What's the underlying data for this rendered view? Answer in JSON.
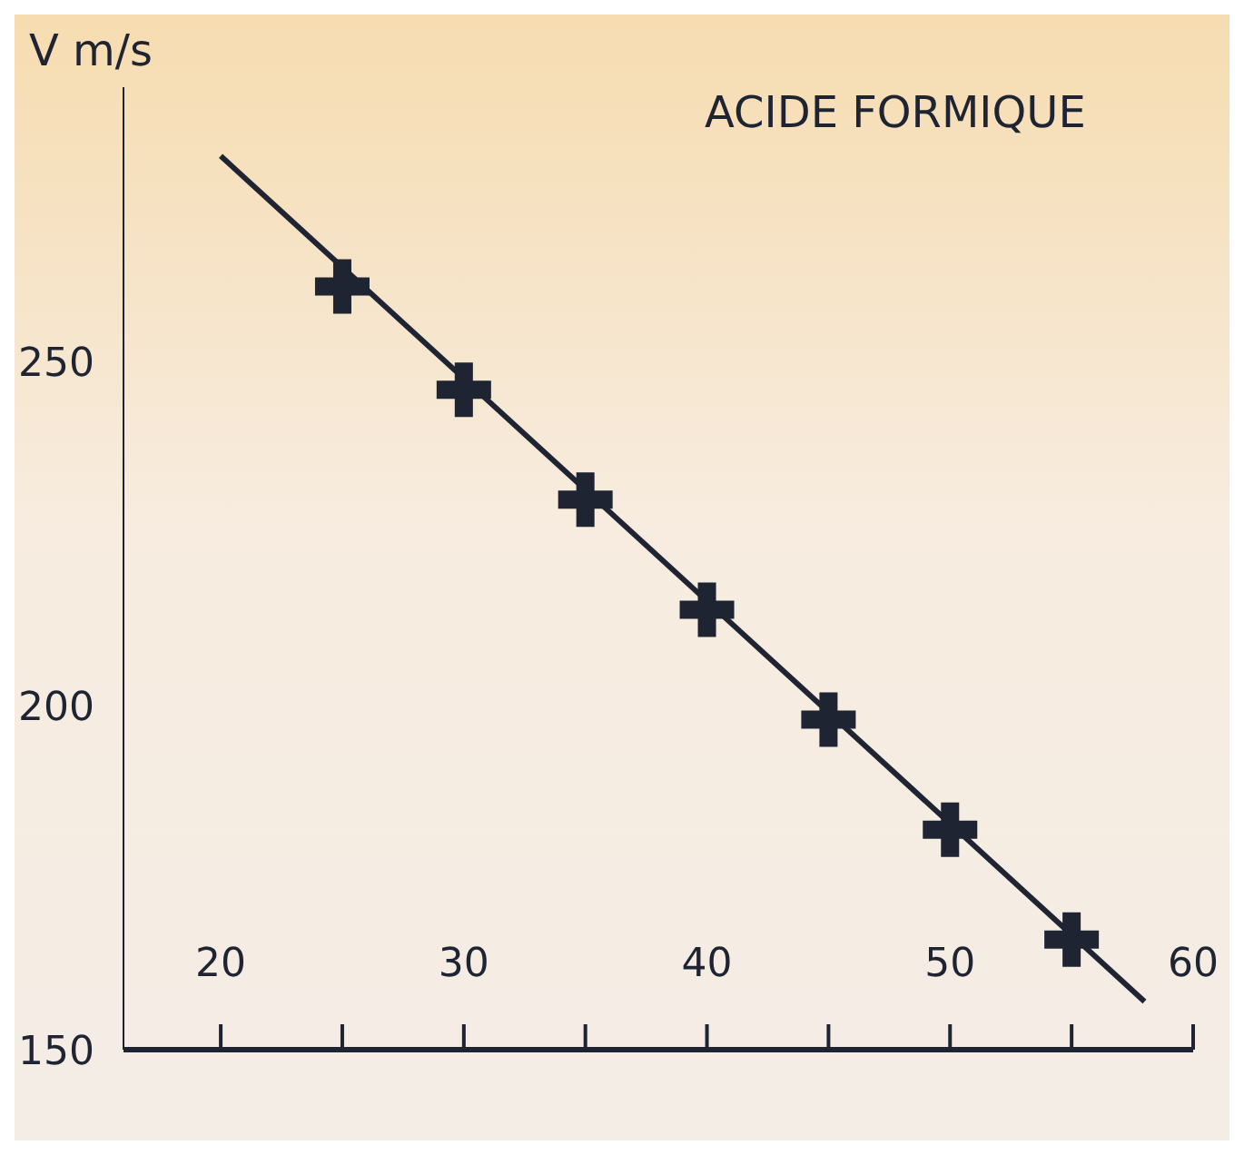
{
  "chart_data": {
    "type": "scatter",
    "title": "ACIDE FORMIQUE",
    "ylabel": "V m/s",
    "xlim": [
      16,
      60
    ],
    "ylim": [
      150,
      290
    ],
    "xticks": [
      20,
      {
        "value": 25,
        "label": null
      },
      30,
      {
        "value": 35,
        "label": null
      },
      40,
      {
        "value": 45,
        "label": null
      },
      50,
      {
        "value": 55,
        "label": null
      },
      60
    ],
    "yticks": [
      150,
      200,
      250
    ],
    "marker": "cross",
    "grid": false,
    "series": [
      {
        "color": "#1f2433",
        "x": [
          25,
          30,
          35,
          40,
          45,
          50,
          55
        ],
        "values": [
          261,
          246,
          230,
          214,
          198,
          182,
          166
        ]
      },
      {
        "type": "line",
        "marker": "none",
        "color": "#1f2433",
        "x": [
          20,
          58
        ],
        "values": [
          280,
          157
        ]
      }
    ]
  }
}
